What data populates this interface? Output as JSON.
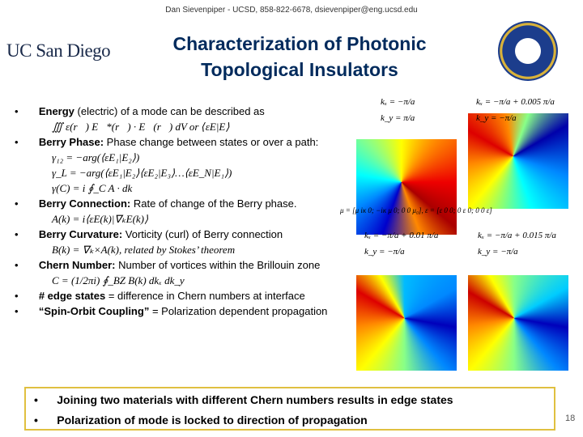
{
  "header": {
    "contact": "Dan Sievenpiper - UCSD, 858-822-6678, dsievenpiper@eng.ucsd.edu",
    "logo": "UC San Diego",
    "title_line1": "Characterization of Photonic",
    "title_line2": "Topological Insulators"
  },
  "bullets": [
    {
      "term": "Energy",
      "text": " (electric) of a mode can be described as",
      "formulas": [
        "∭ ε(r⃗) E⃗*(r⃗) · E⃗(r⃗) dV or ⟨εE|E⟩"
      ]
    },
    {
      "term": "Berry Phase:",
      "text": " Phase change between states or over a path:",
      "formulas": [
        "γ₁₂ = −arg(⟨εE₁|E₂⟩)",
        "γ_L = −arg(⟨εE₁|E₂⟩⟨εE₂|E₃⟩…⟨εE_N|E₁⟩)",
        "γ(C) = i ∮_C A · dk"
      ]
    },
    {
      "term": "Berry Connection:",
      "text": " Rate of change of the Berry phase.",
      "formulas": [
        "A(k) = i⟨εE(k)|∇ₖE(k)⟩"
      ]
    },
    {
      "term": "Berry Curvature:",
      "text": " Vorticity (curl) of Berry connection",
      "formulas": [
        "B(k) = ∇ₖ×A(k), related by Stokes’ theorem"
      ]
    },
    {
      "term": "Chern Number:",
      "text": " Number of vortices within the Brillouin zone",
      "formulas": [
        "C = (1/2πi) ∮_BZ B(k) dkₓ dk_y"
      ]
    },
    {
      "term": "# edge states",
      "text": " = difference in Chern numbers at interface",
      "formulas": []
    },
    {
      "term": "“Spin-Orbit Coupling”",
      "text": " = Polarization dependent propagation",
      "formulas": []
    }
  ],
  "plots": [
    {
      "kx": "kₓ = −π/a",
      "ky": "k_y = π/a"
    },
    {
      "kx": "kₓ = −π/a + 0.005 π/a",
      "ky": "k_y = −π/a"
    },
    {
      "kx": "kₓ = −π/a + 0.01 π/a",
      "ky": "k_y = −π/a"
    },
    {
      "kx": "kₓ = −π/a + 0.015 π/a",
      "ky": "k_y = −π/a"
    }
  ],
  "material": "μ = [μ iκ 0; −iκ μ 0; 0 0 μ₀], ε = [ε 0 0; 0 ε 0; 0 0 ε]",
  "box": [
    "Joining two materials with different Chern numbers results in edge states",
    "Polarization of mode is locked to direction of propagation"
  ],
  "page_number": "18"
}
